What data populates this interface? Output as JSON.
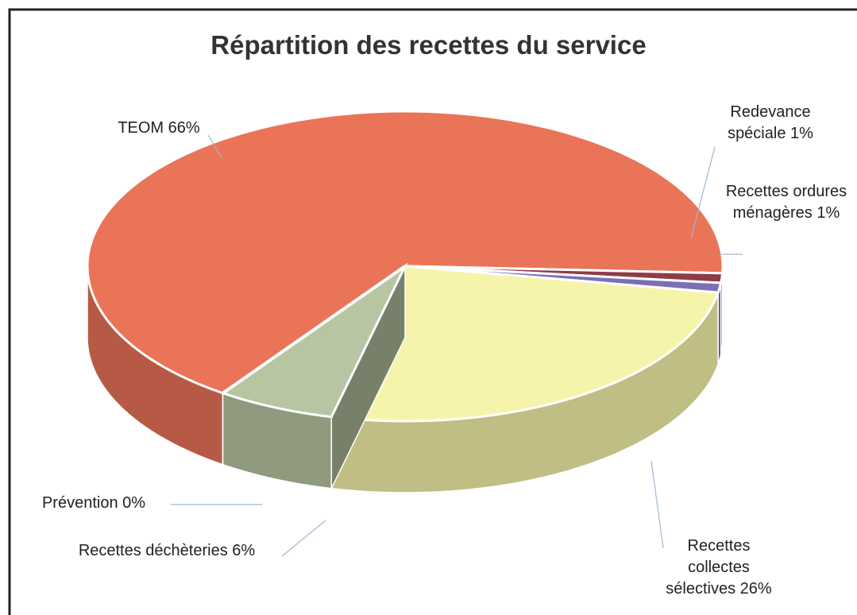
{
  "chart_data": {
    "type": "pie",
    "title": "Répartition des recettes du service",
    "categories": [
      "TEOM",
      "Redevance spéciale",
      "Recettes ordures ménagères",
      "Recettes collectes sélectives",
      "Recettes déchèteries",
      "Prévention"
    ],
    "values": [
      66,
      1,
      1,
      26,
      6,
      0
    ],
    "value_labels": [
      "66%",
      "1%",
      "1%",
      "26%",
      "6%",
      "0%"
    ],
    "colors": [
      "#ea7458",
      "#8e3b4b",
      "#7b70b3",
      "#f6f4ab",
      "#b7c5a2",
      "#9a9a9a"
    ],
    "style": "3d"
  }
}
